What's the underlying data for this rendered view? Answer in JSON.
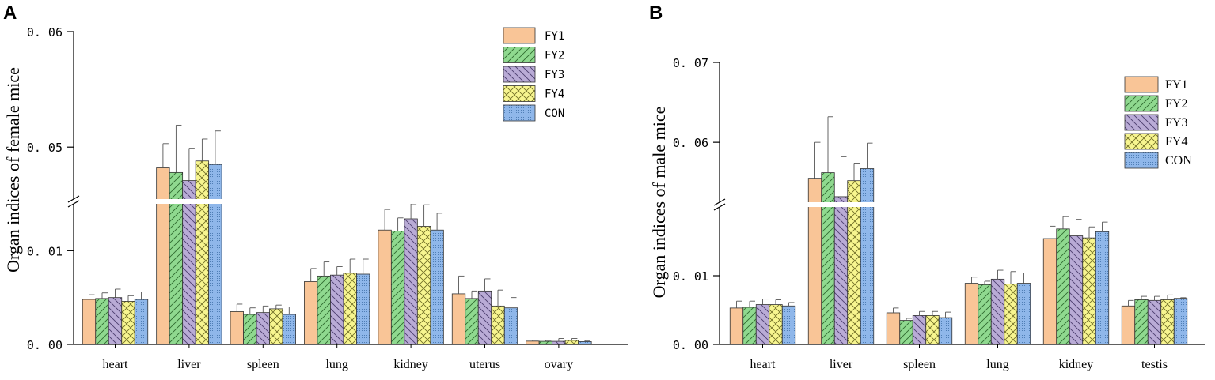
{
  "colors": {
    "FY1": "#f9c597",
    "FY2": "#8fd98f",
    "FY3": "#b9abd6",
    "FY4": "#f7f58f",
    "CON": "#8fb7ea",
    "break_fill": "#ffffff",
    "axis": "#000000",
    "error_bar": "#555555"
  },
  "chart_data": [
    {
      "panel": "A",
      "type": "bar",
      "ylabel": "Organ indices of female mice",
      "xlabel": "",
      "categories": [
        "heart",
        "liver",
        "spleen",
        "lung",
        "kidney",
        "uterus",
        "ovary"
      ],
      "y_break": {
        "lower": [
          0,
          0.015
        ],
        "upper": [
          0.0455,
          0.06
        ]
      },
      "yticks": [
        {
          "value": 0,
          "label": "0.00"
        },
        {
          "value": 0.01,
          "label": "0.01"
        },
        {
          "value": 0.05,
          "label": "0.05"
        },
        {
          "value": 0.06,
          "label": "0.06"
        }
      ],
      "legend": {
        "position": "top-right",
        "entries": [
          "FY1",
          "FY2",
          "FY3",
          "FY4",
          "CON"
        ],
        "font": "mono"
      },
      "series": [
        {
          "name": "FY1",
          "pattern": "none",
          "values": [
            0.0048,
            0.0482,
            0.0035,
            0.0067,
            0.0122,
            0.0054,
            0.00035
          ],
          "errors": [
            0.0005,
            0.0021,
            0.0008,
            0.0014,
            0.0022,
            0.0019,
            0.0001
          ]
        },
        {
          "name": "FY2",
          "pattern": "forward",
          "values": [
            0.0049,
            0.0478,
            0.0032,
            0.0073,
            0.0121,
            0.0049,
            0.00033
          ],
          "errors": [
            0.0006,
            0.0041,
            0.0007,
            0.0015,
            0.0014,
            0.0008,
            0.0001
          ]
        },
        {
          "name": "FY3",
          "pattern": "backward",
          "values": [
            0.005,
            0.0471,
            0.0034,
            0.0074,
            0.0134,
            0.0057,
            0.00033
          ],
          "errors": [
            0.0009,
            0.0028,
            0.0007,
            0.0009,
            0.0017,
            0.0013,
            0.0003
          ]
        },
        {
          "name": "FY4",
          "pattern": "cross",
          "values": [
            0.0046,
            0.0488,
            0.0038,
            0.0076,
            0.0126,
            0.0041,
            0.00043
          ],
          "errors": [
            0.0006,
            0.0019,
            0.0004,
            0.0015,
            0.0023,
            0.0017,
            0.0002
          ]
        },
        {
          "name": "CON",
          "pattern": "dots",
          "values": [
            0.0048,
            0.0485,
            0.0032,
            0.0075,
            0.0122,
            0.0039,
            0.0003
          ],
          "errors": [
            0.0008,
            0.0029,
            0.0008,
            0.0016,
            0.0018,
            0.0011,
            0.0001
          ]
        }
      ]
    },
    {
      "panel": "B",
      "type": "bar",
      "ylabel": "Organ indices of male mice",
      "xlabel": "",
      "categories": [
        "heart",
        "liver",
        "spleen",
        "lung",
        "kidney",
        "testis"
      ],
      "y_break": {
        "lower": [
          0,
          0.02
        ],
        "upper": [
          0.0525,
          0.07
        ]
      },
      "yticks": [
        {
          "value": 0,
          "label": "0.00"
        },
        {
          "value": 0.01,
          "label": "0.01"
        },
        {
          "value": 0.06,
          "label": "0.06"
        },
        {
          "value": 0.07,
          "label": "0.07"
        }
      ],
      "legend": {
        "position": "top-right",
        "entries": [
          "FY1",
          "FY2",
          "FY3",
          "FY4",
          "CON"
        ],
        "font": "serif"
      },
      "series": [
        {
          "name": "FY1",
          "pattern": "none",
          "values": [
            0.0053,
            0.0555,
            0.0046,
            0.0089,
            0.0154,
            0.0056
          ],
          "errors": [
            0.001,
            0.0045,
            0.0007,
            0.0009,
            0.0018,
            0.0008
          ]
        },
        {
          "name": "FY2",
          "pattern": "forward",
          "values": [
            0.0054,
            0.0562,
            0.0035,
            0.0087,
            0.0168,
            0.0065
          ],
          "errors": [
            0.0009,
            0.007,
            0.0003,
            0.0005,
            0.0018,
            0.0005
          ]
        },
        {
          "name": "FY3",
          "pattern": "backward",
          "values": [
            0.0058,
            0.0532,
            0.0042,
            0.0095,
            0.0158,
            0.0064
          ],
          "errors": [
            0.0008,
            0.005,
            0.0006,
            0.0013,
            0.0024,
            0.0006
          ]
        },
        {
          "name": "FY4",
          "pattern": "cross",
          "values": [
            0.0058,
            0.0552,
            0.0042,
            0.0088,
            0.0155,
            0.0065
          ],
          "errors": [
            0.0007,
            0.0022,
            0.0006,
            0.0018,
            0.0016,
            0.0007
          ]
        },
        {
          "name": "CON",
          "pattern": "dots",
          "values": [
            0.0056,
            0.0567,
            0.0039,
            0.0089,
            0.0164,
            0.0067
          ],
          "errors": [
            0.0005,
            0.0032,
            0.0008,
            0.0015,
            0.0014,
            0.0001
          ]
        }
      ]
    }
  ]
}
